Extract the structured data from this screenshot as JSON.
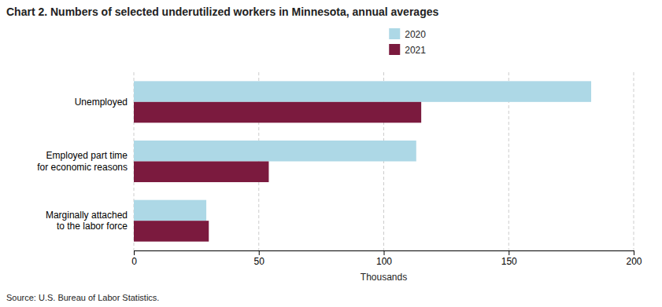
{
  "chart_data": {
    "type": "bar",
    "orientation": "horizontal",
    "title": "Chart 2. Numbers of selected underutilized workers in Minnesota, annual averages",
    "categories": [
      "Marginally attached\nto the labor force",
      "Employed part time\nfor economic reasons",
      "Unemployed"
    ],
    "series": [
      {
        "name": "2020",
        "color": "#add8e6",
        "values": [
          29,
          113,
          183
        ]
      },
      {
        "name": "2021",
        "color": "#7b1a3e",
        "values": [
          30,
          54,
          115
        ]
      }
    ],
    "xlabel": "Thousands",
    "xlim": [
      0,
      200
    ],
    "xticks": [
      0,
      50,
      100,
      150,
      200
    ],
    "grid": true,
    "legend": "top",
    "annotations": [
      "Source: U.S. Bureau of Labor Statistics."
    ]
  }
}
